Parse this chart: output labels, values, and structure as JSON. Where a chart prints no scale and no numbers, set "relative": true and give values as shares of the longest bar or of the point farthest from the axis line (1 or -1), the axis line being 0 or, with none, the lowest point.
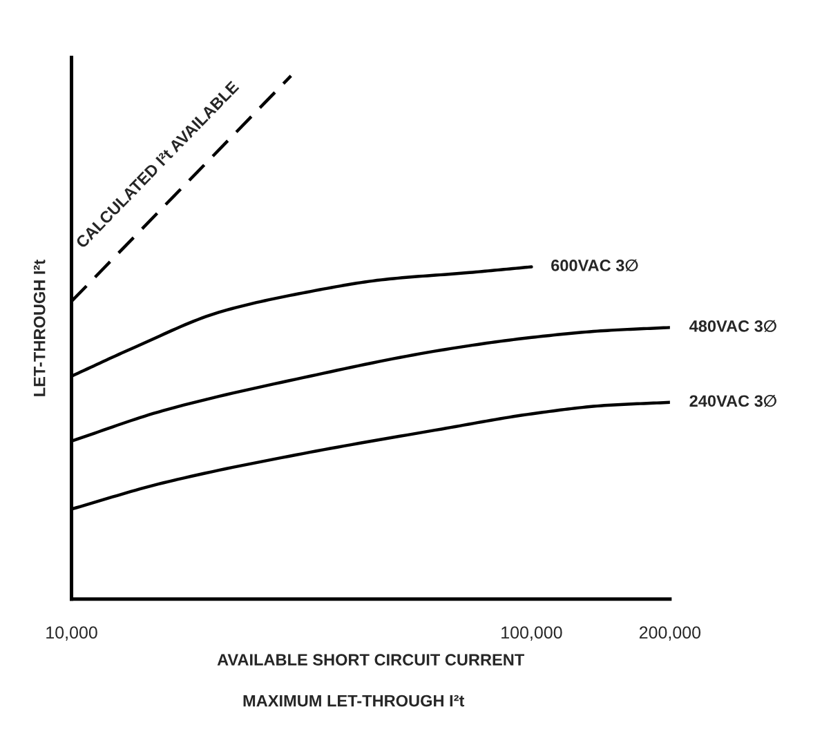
{
  "chart_data": {
    "type": "line",
    "relative": true,
    "log": "x",
    "xlabel": "AVAILABLE SHORT CIRCUIT CURRENT",
    "ylabel": "LET-THROUGH I²t",
    "annotations": [
      "MAXIMUM LET-THROUGH I²t"
    ],
    "xlim": [
      10000,
      200000
    ],
    "xticks": [
      {
        "value": 10000,
        "label": "10,000"
      },
      {
        "value": 100000,
        "label": "100,000"
      },
      {
        "value": 200000,
        "label": "200,000"
      }
    ],
    "tick_labels": "x",
    "grid": false,
    "legend": false,
    "marker": "none",
    "series": [
      {
        "name": "CALCULATED I²t AVAILABLE",
        "color": "#000000",
        "line_style": "dashed",
        "x": [
          10000,
          30000
        ],
        "values": [
          0.569,
          1
        ]
      },
      {
        "name": "600VAC 3∅",
        "color": "#000000",
        "line_style": "solid",
        "x": [
          10000,
          13700,
          20900,
          31800,
          48100,
          73300,
          100000
        ],
        "values": [
          0.426,
          0.481,
          0.548,
          0.585,
          0.611,
          0.624,
          0.635
        ]
      },
      {
        "name": "480VAC 3∅",
        "color": "#000000",
        "line_style": "solid",
        "x": [
          10000,
          15800,
          31800,
          63800,
          100000,
          144000,
          200000
        ],
        "values": [
          0.302,
          0.36,
          0.423,
          0.476,
          0.5,
          0.513,
          0.519
        ]
      },
      {
        "name": "240VAC 3∅",
        "color": "#000000",
        "line_style": "solid",
        "x": [
          10000,
          15800,
          31800,
          63800,
          100000,
          144000,
          200000
        ],
        "values": [
          0.172,
          0.222,
          0.278,
          0.325,
          0.354,
          0.37,
          0.376
        ]
      }
    ]
  }
}
